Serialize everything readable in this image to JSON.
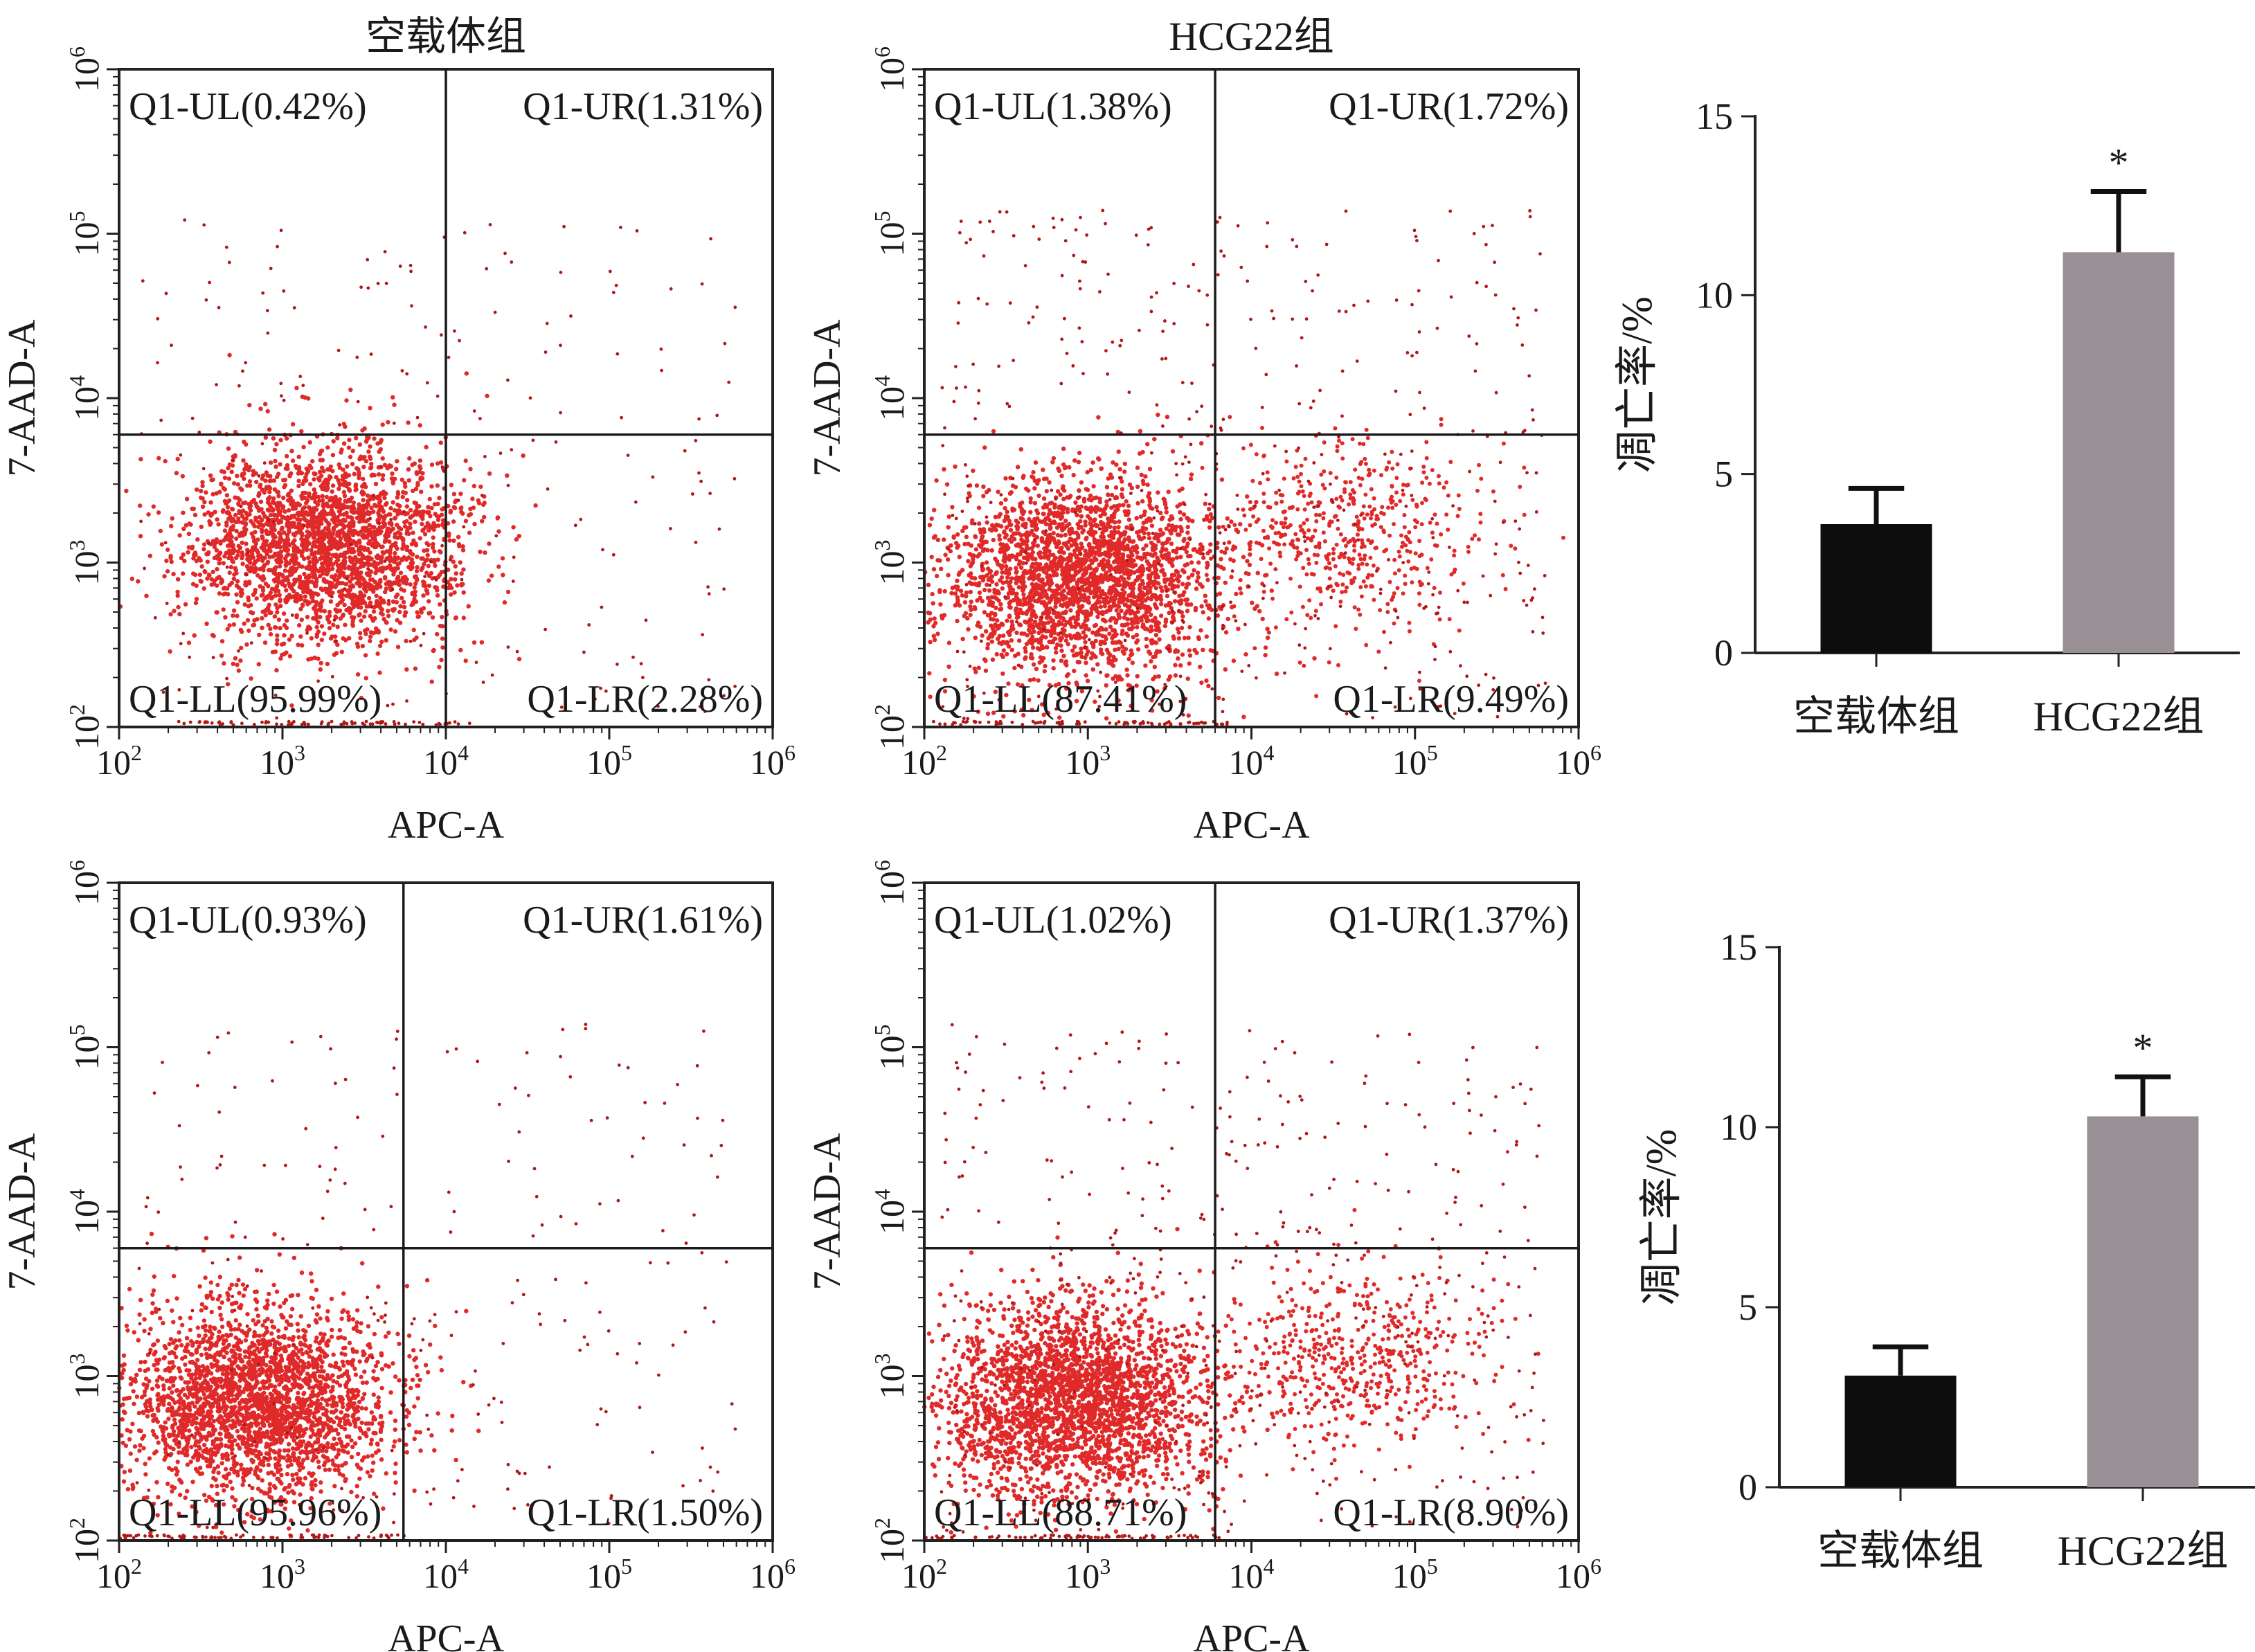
{
  "chart_data": [
    {
      "type": "scatter",
      "title": "空载体组",
      "xlabel": "APC-A",
      "ylabel": "7-AAD-A",
      "x_scale": "log",
      "y_scale": "log",
      "xlim": [
        100,
        1000000
      ],
      "ylim": [
        100,
        1000000
      ],
      "x_ticks": [
        "10",
        "10",
        "10",
        "10",
        "10"
      ],
      "x_tick_exponents": [
        "2",
        "3",
        "4",
        "5",
        "6"
      ],
      "y_ticks": [
        "10",
        "10",
        "10",
        "10",
        "10"
      ],
      "y_tick_exponents": [
        "2",
        "3",
        "4",
        "5",
        "6"
      ],
      "gate": {
        "x": 10000,
        "y": 6000
      },
      "quadrants": {
        "UL": "Q1-UL(0.42%)",
        "UR": "Q1-UR(1.31%)",
        "LL": "Q1-LL(95.99%)",
        "LR": "Q1-LR(2.28%)"
      },
      "population": {
        "center_x": 1800,
        "center_y": 1300,
        "lr_cluster": false
      }
    },
    {
      "type": "scatter",
      "title": "HCG22组",
      "xlabel": "APC-A",
      "ylabel": "7-AAD-A",
      "x_scale": "log",
      "y_scale": "log",
      "xlim": [
        100,
        1000000
      ],
      "ylim": [
        100,
        1000000
      ],
      "x_ticks": [
        "10",
        "10",
        "10",
        "10",
        "10"
      ],
      "x_tick_exponents": [
        "2",
        "3",
        "4",
        "5",
        "6"
      ],
      "y_ticks": [
        "10",
        "10",
        "10",
        "10",
        "10"
      ],
      "y_tick_exponents": [
        "2",
        "3",
        "4",
        "5",
        "6"
      ],
      "gate": {
        "x": 6000,
        "y": 6000
      },
      "quadrants": {
        "UL": "Q1-UL(1.38%)",
        "UR": "Q1-UR(1.72%)",
        "LL": "Q1-LL(87.41%)",
        "LR": "Q1-LR(9.49%)"
      },
      "population": {
        "center_x": 900,
        "center_y": 800,
        "lr_cluster": true,
        "lr_center_x": 40000,
        "lr_center_y": 1500
      }
    },
    {
      "type": "bar",
      "categories": [
        "空载体组",
        "HCG22组"
      ],
      "values": [
        3.6,
        11.2
      ],
      "errors": [
        1.0,
        1.7
      ],
      "colors": [
        "#0d0d0d",
        "#989094"
      ],
      "ylabel": "凋亡率/%",
      "ylim": [
        0,
        15
      ],
      "yticks": [
        "0",
        "5",
        "10",
        "15"
      ],
      "annotations": [
        "",
        "*"
      ]
    },
    {
      "type": "scatter",
      "title": "",
      "xlabel": "APC-A",
      "ylabel": "7-AAD-A",
      "x_scale": "log",
      "y_scale": "log",
      "xlim": [
        100,
        1000000
      ],
      "ylim": [
        100,
        1000000
      ],
      "x_ticks": [
        "10",
        "10",
        "10",
        "10",
        "10"
      ],
      "x_tick_exponents": [
        "2",
        "3",
        "4",
        "5",
        "6"
      ],
      "y_ticks": [
        "10",
        "10",
        "10",
        "10",
        "10"
      ],
      "y_tick_exponents": [
        "2",
        "3",
        "4",
        "5",
        "6"
      ],
      "gate": {
        "x": 5500,
        "y": 6000
      },
      "quadrants": {
        "UL": "Q1-UL(0.93%)",
        "UR": "Q1-UR(1.61%)",
        "LL": "Q1-LL(95.96%)",
        "LR": "Q1-LR(1.50%)"
      },
      "population": {
        "center_x": 700,
        "center_y": 700,
        "lr_cluster": false
      }
    },
    {
      "type": "scatter",
      "title": "",
      "xlabel": "APC-A",
      "ylabel": "7-AAD-A",
      "x_scale": "log",
      "y_scale": "log",
      "xlim": [
        100,
        1000000
      ],
      "ylim": [
        100,
        1000000
      ],
      "x_ticks": [
        "10",
        "10",
        "10",
        "10",
        "10"
      ],
      "x_tick_exponents": [
        "2",
        "3",
        "4",
        "5",
        "6"
      ],
      "y_ticks": [
        "10",
        "10",
        "10",
        "10",
        "10"
      ],
      "y_tick_exponents": [
        "2",
        "3",
        "4",
        "5",
        "6"
      ],
      "gate": {
        "x": 6000,
        "y": 6000
      },
      "quadrants": {
        "UL": "Q1-UL(1.02%)",
        "UR": "Q1-UR(1.37%)",
        "LL": "Q1-LL(88.71%)",
        "LR": "Q1-LR(8.90%)"
      },
      "population": {
        "center_x": 800,
        "center_y": 700,
        "lr_cluster": true,
        "lr_center_x": 45000,
        "lr_center_y": 1300
      }
    },
    {
      "type": "bar",
      "categories": [
        "空载体组",
        "HCG22组"
      ],
      "values": [
        3.1,
        10.3
      ],
      "errors": [
        0.8,
        1.1
      ],
      "colors": [
        "#0d0d0d",
        "#989094"
      ],
      "ylabel": "凋亡率/%",
      "ylim": [
        0,
        15
      ],
      "yticks": [
        "0",
        "5",
        "10",
        "15"
      ],
      "annotations": [
        "",
        "*"
      ]
    }
  ],
  "colors": {
    "dots": "#e02a2a",
    "dots_dark": "#b01818",
    "axis": "#222222"
  }
}
